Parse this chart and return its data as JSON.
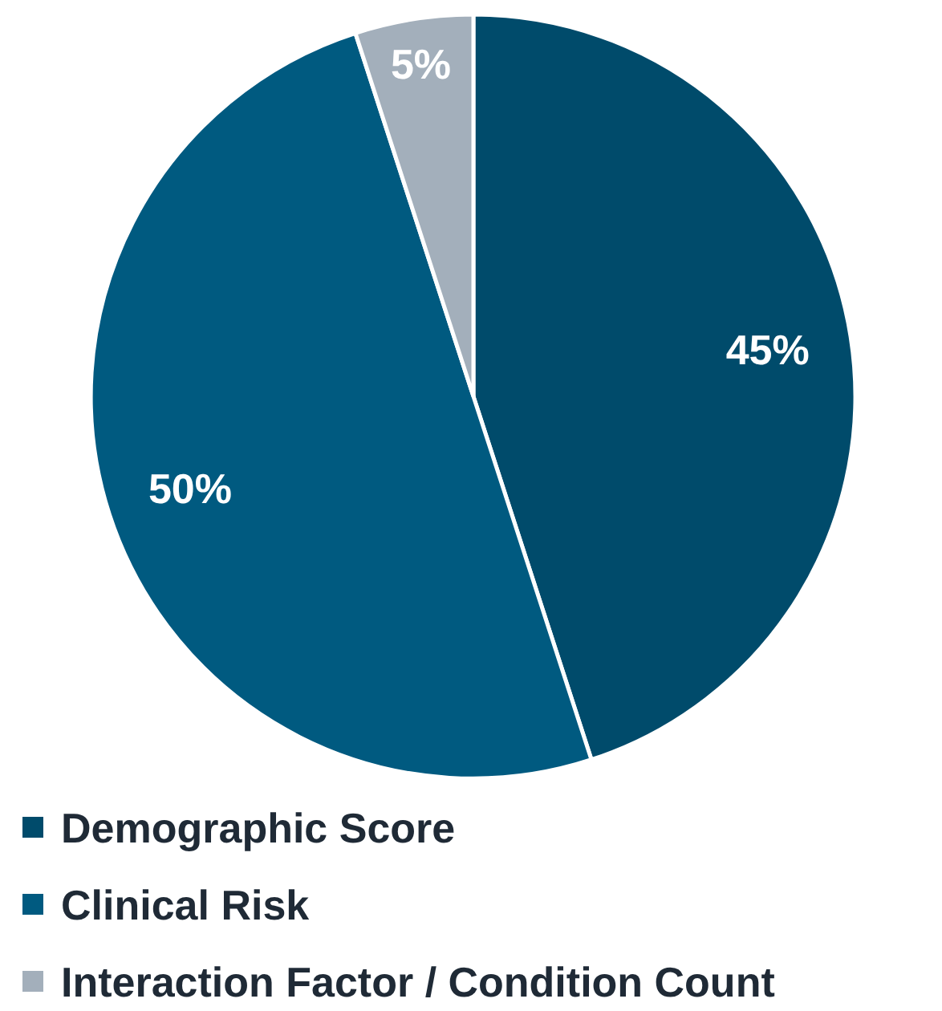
{
  "chart_data": {
    "type": "pie",
    "categories": [
      "Demographic Score",
      "Clinical Risk",
      "Interaction Factor / Condition Count"
    ],
    "values": [
      45,
      50,
      5
    ],
    "colors": [
      "#004b6b",
      "#005a80",
      "#a3afbb"
    ],
    "value_labels": [
      "45%",
      "50%",
      "5%"
    ],
    "legend": "bottom"
  }
}
